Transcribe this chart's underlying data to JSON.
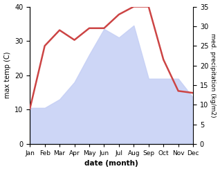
{
  "months": [
    "Jan",
    "Feb",
    "Mar",
    "Apr",
    "May",
    "Jun",
    "Jul",
    "Aug",
    "Sep",
    "Oct",
    "Nov",
    "Dec"
  ],
  "temp": [
    10.5,
    10.5,
    13.0,
    18.0,
    26.0,
    33.5,
    31.0,
    34.5,
    19.0,
    19.0,
    19.0,
    13.5
  ],
  "precip": [
    9.0,
    25.0,
    29.0,
    26.5,
    29.5,
    29.5,
    33.0,
    35.0,
    35.0,
    21.5,
    13.5,
    13.0
  ],
  "precip_color": "#cc4444",
  "temp_fill_color": "#c5cff5",
  "temp_ylim": [
    0,
    40
  ],
  "precip_ylim": [
    0,
    35
  ],
  "temp_yticks": [
    0,
    10,
    20,
    30,
    40
  ],
  "precip_yticks": [
    0,
    5,
    10,
    15,
    20,
    25,
    30,
    35
  ],
  "xlabel": "date (month)",
  "ylabel_left": "max temp (C)",
  "ylabel_right": "med. precipitation (kg/m2)",
  "bg_color": "#ffffff"
}
